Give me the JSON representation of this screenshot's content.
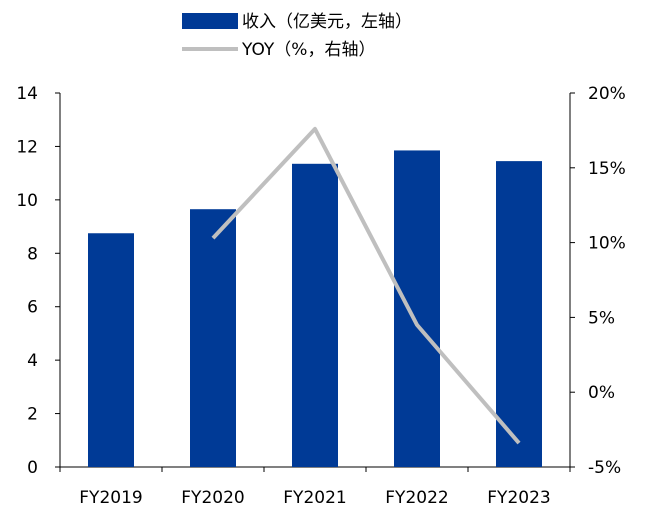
{
  "chart_data": {
    "type": "bar",
    "categories": [
      "FY2019",
      "FY2020",
      "FY2021",
      "FY2022",
      "FY2023"
    ],
    "series": [
      {
        "name": "收入（亿美元，左轴）",
        "type": "bar",
        "axis": "left",
        "color": "#003a96",
        "values": [
          8.75,
          9.65,
          11.35,
          11.85,
          11.45
        ]
      },
      {
        "name": "YOY（%，右轴）",
        "type": "line",
        "axis": "right",
        "color": "#bfbfbf",
        "values": [
          null,
          10.3,
          17.6,
          4.5,
          -3.4
        ]
      }
    ],
    "y_left": {
      "ylim": [
        0,
        14
      ],
      "ticks": [
        "0",
        "2",
        "4",
        "6",
        "8",
        "10",
        "12",
        "14"
      ]
    },
    "y_right": {
      "ylim": [
        -5,
        20
      ],
      "ticks": [
        "-5%",
        "0%",
        "5%",
        "10%",
        "15%",
        "20%"
      ]
    },
    "legend_position": "top-center",
    "grid": false
  }
}
